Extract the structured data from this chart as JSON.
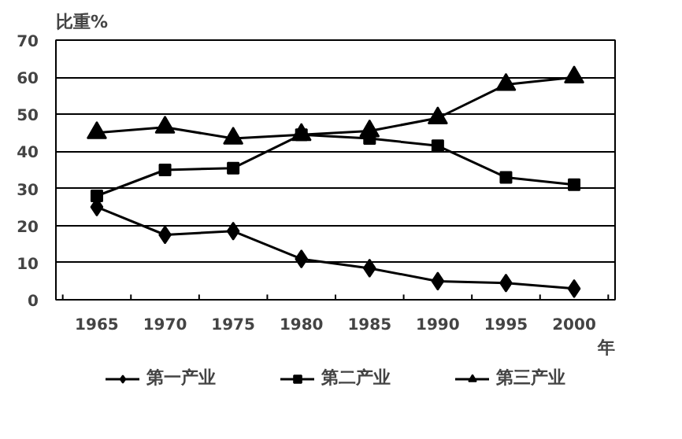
{
  "chart_data": {
    "type": "line",
    "ylabel": "比重%",
    "xlabel": "年",
    "categories": [
      "1965",
      "1970",
      "1975",
      "1980",
      "1985",
      "1990",
      "1995",
      "2000"
    ],
    "series": [
      {
        "name": "第一产业",
        "color": "#000000",
        "marker": "diamond",
        "values": [
          25,
          17.5,
          18.5,
          11,
          8.5,
          5,
          4.5,
          3
        ]
      },
      {
        "name": "第二产业",
        "color": "#000000",
        "marker": "square",
        "values": [
          28,
          35,
          35.5,
          44.5,
          43.5,
          41.5,
          33,
          31
        ]
      },
      {
        "name": "第三产业",
        "color": "#000000",
        "marker": "triangle",
        "values": [
          45,
          46.5,
          43.5,
          44.5,
          45.5,
          49,
          58,
          60
        ]
      }
    ],
    "ylim": [
      0,
      70
    ],
    "yticks": [
      0,
      10,
      20,
      30,
      40,
      50,
      60,
      70
    ],
    "grid": "y",
    "legend": "bottom",
    "line_style": "solid"
  }
}
